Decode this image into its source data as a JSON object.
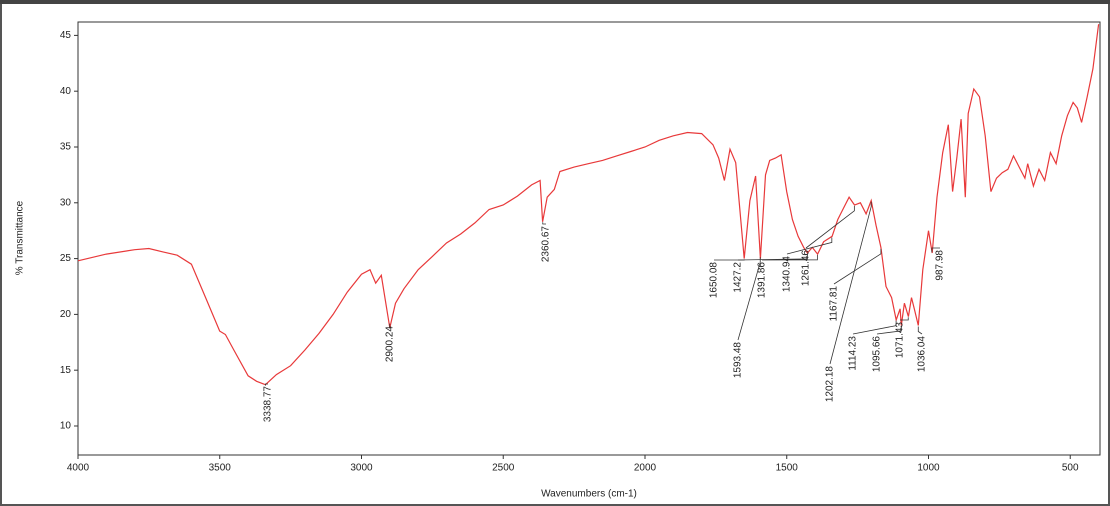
{
  "chart_data": {
    "type": "line",
    "xlabel": "Wavenumbers (cm-1)",
    "ylabel": "% Transmittance",
    "x": [
      4000,
      3900,
      3800,
      3750,
      3700,
      3650,
      3600,
      3550,
      3500,
      3480,
      3450,
      3400,
      3370,
      3339,
      3300,
      3250,
      3200,
      3150,
      3100,
      3050,
      3000,
      2970,
      2950,
      2930,
      2900,
      2880,
      2850,
      2800,
      2750,
      2700,
      2650,
      2600,
      2550,
      2500,
      2450,
      2400,
      2370,
      2361,
      2345,
      2320,
      2300,
      2250,
      2200,
      2150,
      2100,
      2050,
      2000,
      1950,
      1900,
      1850,
      1800,
      1760,
      1740,
      1720,
      1700,
      1680,
      1650,
      1630,
      1610,
      1593,
      1575,
      1560,
      1540,
      1520,
      1500,
      1480,
      1460,
      1440,
      1427,
      1410,
      1391,
      1370,
      1340,
      1320,
      1300,
      1280,
      1261,
      1240,
      1220,
      1202,
      1185,
      1168,
      1150,
      1130,
      1114,
      1100,
      1096,
      1085,
      1071,
      1060,
      1050,
      1036,
      1020,
      1000,
      987,
      970,
      950,
      930,
      915,
      900,
      885,
      870,
      860,
      840,
      820,
      800,
      780,
      760,
      740,
      720,
      700,
      680,
      660,
      650,
      630,
      610,
      590,
      570,
      550,
      530,
      510,
      490,
      475,
      460,
      440,
      420,
      400
    ],
    "series": [
      {
        "color": "#e8393a",
        "values": [
          24.8,
          25.4,
          25.8,
          25.9,
          25.6,
          25.3,
          24.5,
          21.5,
          18.5,
          18.2,
          16.8,
          14.5,
          14.0,
          13.7,
          14.6,
          15.4,
          16.8,
          18.3,
          20.0,
          22.0,
          23.6,
          24.0,
          22.8,
          23.5,
          18.8,
          21.0,
          22.3,
          24.0,
          25.2,
          26.4,
          27.2,
          28.2,
          29.4,
          29.8,
          30.6,
          31.6,
          32.0,
          28.3,
          30.5,
          31.2,
          32.8,
          33.2,
          33.5,
          33.8,
          34.2,
          34.6,
          35.0,
          35.6,
          36.0,
          36.3,
          36.2,
          35.2,
          34.0,
          32.0,
          34.8,
          33.6,
          25.0,
          30.2,
          32.4,
          25.0,
          32.5,
          33.8,
          34.0,
          34.3,
          31.0,
          28.5,
          27.0,
          26.0,
          25.5,
          26.0,
          25.4,
          26.5,
          27.0,
          28.5,
          29.5,
          30.5,
          29.8,
          30.0,
          29.0,
          30.2,
          28.0,
          26.0,
          22.5,
          21.5,
          19.5,
          20.5,
          19.0,
          21.0,
          19.8,
          21.5,
          20.5,
          19.0,
          24.0,
          27.5,
          25.5,
          30.5,
          34.5,
          37.0,
          31.0,
          34.0,
          37.5,
          30.5,
          38.0,
          40.2,
          39.5,
          36.0,
          31.0,
          32.2,
          32.7,
          33.0,
          34.2,
          33.2,
          32.2,
          33.5,
          31.5,
          33.0,
          32.0,
          34.5,
          33.5,
          36.0,
          37.8,
          39.0,
          38.5,
          37.2,
          39.5,
          42.0,
          46.0
        ]
      }
    ],
    "peaks": [
      3338.77,
      2900.24,
      2360.67,
      1650.08,
      1427.2,
      1391.86,
      1340.94,
      1261.46,
      1167.81,
      1593.48,
      1202.18,
      1114.23,
      1095.66,
      1071.43,
      1036.04,
      987.98
    ],
    "xlim": [
      4000,
      395
    ],
    "xticks": [
      4000,
      3500,
      3000,
      2500,
      2000,
      1500,
      1000,
      500
    ],
    "ylim": [
      7.4,
      46.2
    ],
    "yticks": [
      10,
      15,
      20,
      25,
      30,
      35,
      40,
      45
    ]
  }
}
